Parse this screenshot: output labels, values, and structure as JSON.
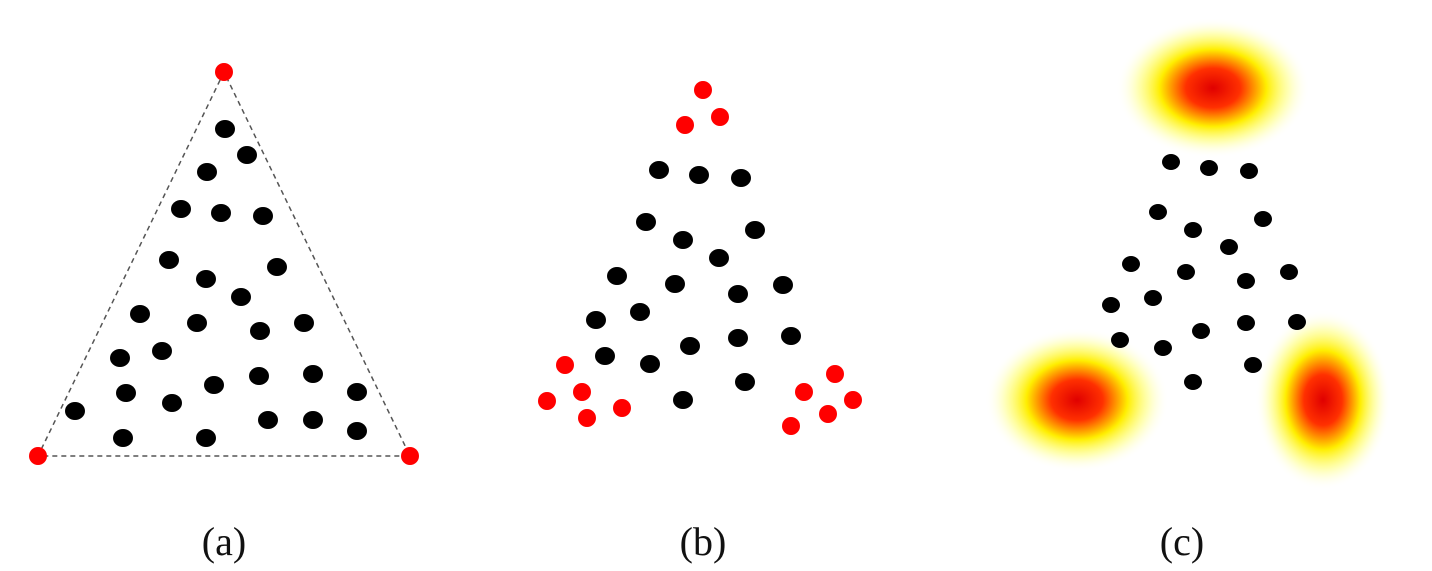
{
  "colors": {
    "point": "#000000",
    "highlight": "#ff0000",
    "heat_core": "#e00000",
    "heat_mid": "#ffff00",
    "outline": "#555555"
  },
  "panels": [
    {
      "id": "a",
      "caption": "(a)",
      "boundary_style": "dashed-triangle",
      "highlight_style": "triangle-vertices"
    },
    {
      "id": "b",
      "caption": "(b)",
      "highlight_style": "corner-clusters"
    },
    {
      "id": "c",
      "caption": "(c)",
      "highlight_style": "heat-blobs"
    }
  ]
}
